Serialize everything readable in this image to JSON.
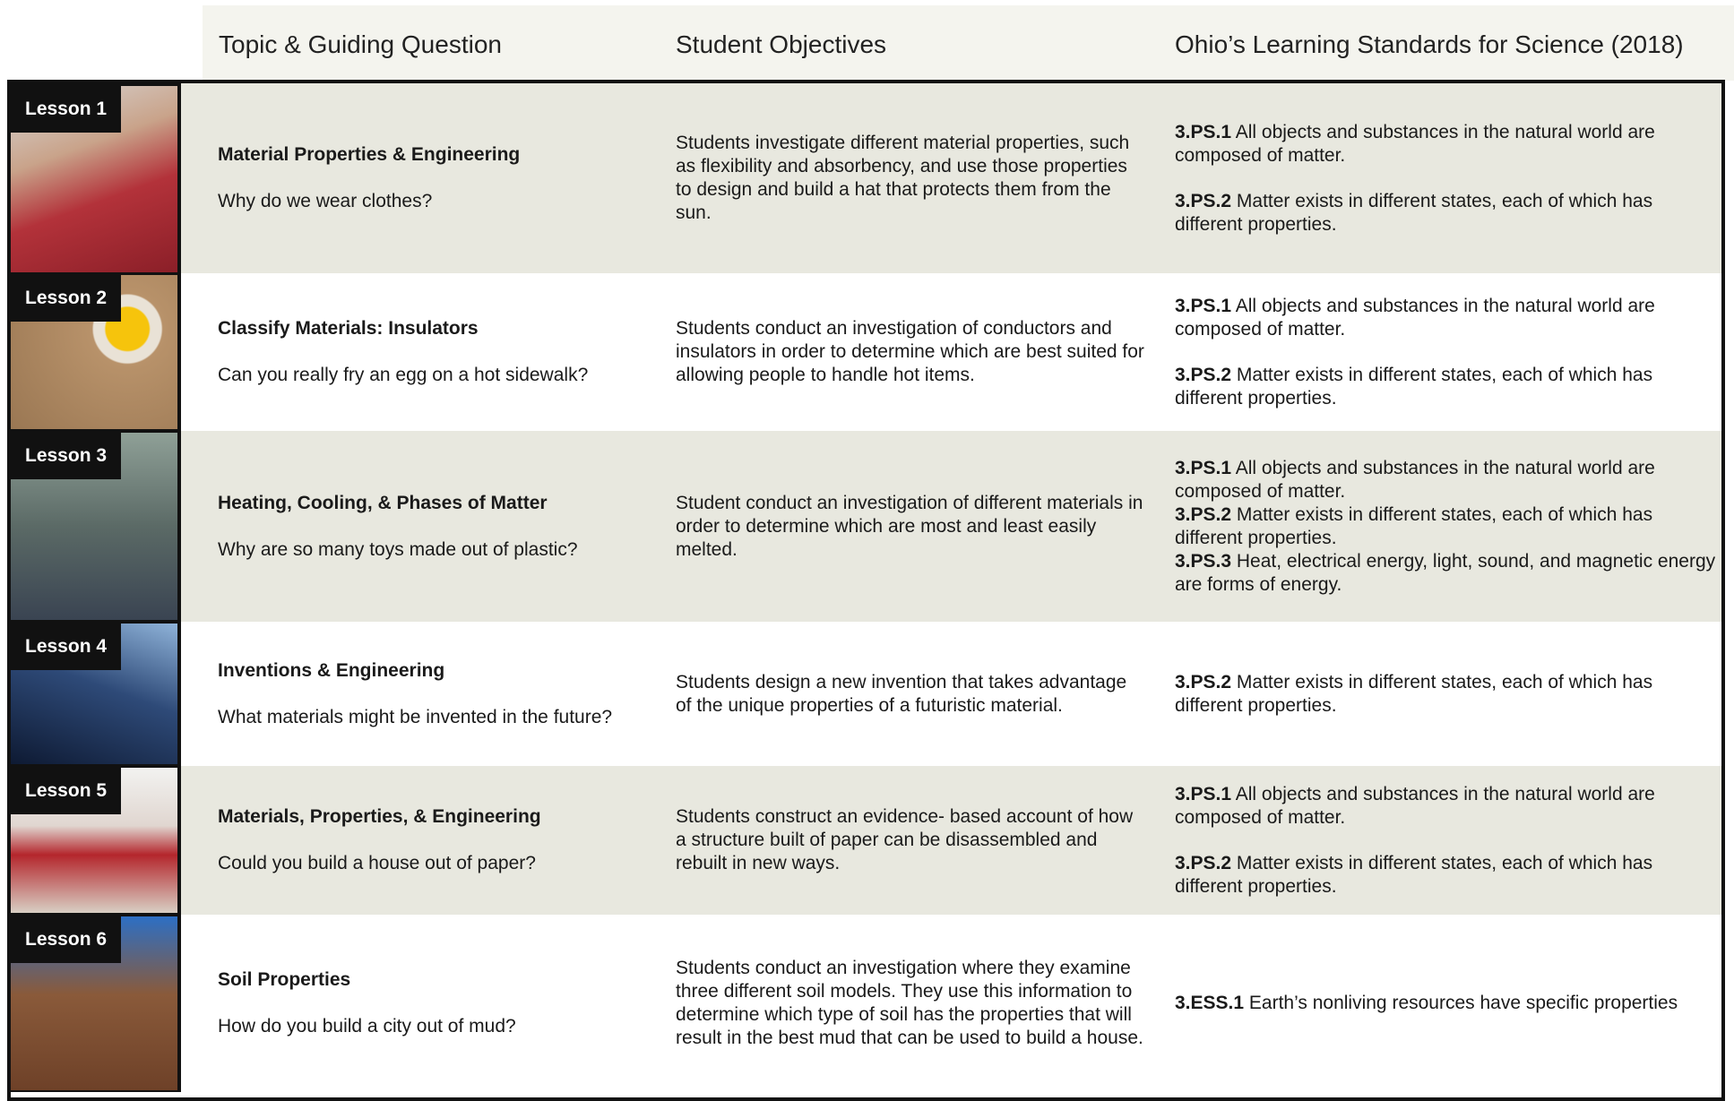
{
  "header": {
    "columns": [
      "Topic & Guiding Question",
      "Student Objectives",
      "Ohio’s Learning Standards for Science (2018)"
    ]
  },
  "lessons": [
    {
      "label": "Lesson 1",
      "title": "Material Properties & Engineering",
      "question": "Why do we wear clothes?",
      "objective": "Students investigate different material properties, such as flexibility and absorbency, and use those properties to design and build a hat that protects them from the sun.",
      "standards": [
        {
          "code": "3.PS.1",
          "text": "All objects and substances in the natural world are composed of matter."
        },
        {
          "code": "3.PS.2",
          "text": "Matter exists in different states, each of which has different properties."
        }
      ]
    },
    {
      "label": "Lesson 2",
      "title": "Classify Materials: Insulators",
      "question": "Can you really fry an egg on a hot sidewalk?",
      "objective": "Students conduct an investigation of conductors and insulators in order to determine which are best suited for allowing people to handle hot items.",
      "standards": [
        {
          "code": "3.PS.1",
          "text": "All objects and substances in the natural world are composed of matter."
        },
        {
          "code": "3.PS.2",
          "text": "Matter exists in different states, each of which has different properties."
        }
      ]
    },
    {
      "label": "Lesson 3",
      "title": "Heating, Cooling, & Phases of Matter",
      "question": "Why are so many toys made out of plastic?",
      "objective": "Student conduct an investigation of different materials in order to determine which are most and least easily melted.",
      "standards": [
        {
          "code": "3.PS.1",
          "text": "All objects and substances in the natural world are composed of matter."
        },
        {
          "code": "3.PS.2",
          "text": "Matter exists in different states, each of which has different properties."
        },
        {
          "code": "3.PS.3",
          "text": "Heat, electrical energy, light, sound, and magnetic energy are forms of energy."
        }
      ]
    },
    {
      "label": "Lesson 4",
      "title": "Inventions & Engineering",
      "question": "What materials might be invented in the future?",
      "objective": "Students design a new invention that takes advantage of the unique properties of a futuristic material.",
      "standards": [
        {
          "code": "3.PS.2",
          "text": "Matter exists in different states, each of which has different properties."
        }
      ]
    },
    {
      "label": "Lesson 5",
      "title": "Materials, Properties, & Engineering",
      "question": "Could you build a house out of paper?",
      "objective": "Students construct an evidence- based account of how a structure built of paper can be disassembled and rebuilt in new ways.",
      "standards": [
        {
          "code": "3.PS.1",
          "text": "All objects and substances in the natural world are composed of matter."
        },
        {
          "code": "3.PS.2",
          "text": "Matter exists in different states, each of which has different properties."
        }
      ]
    },
    {
      "label": "Lesson 6",
      "title": "Soil  Properties",
      "question": "How do you build a city out of mud?",
      "objective": "Students conduct an investigation where they examine three different soil models. They use this information to determine which type of soil has the properties that will result in the best mud that can be used to build a house.",
      "standards": [
        {
          "code": "3.ESS.1",
          "text": "Earth’s nonliving resources have specific properties"
        }
      ]
    }
  ]
}
